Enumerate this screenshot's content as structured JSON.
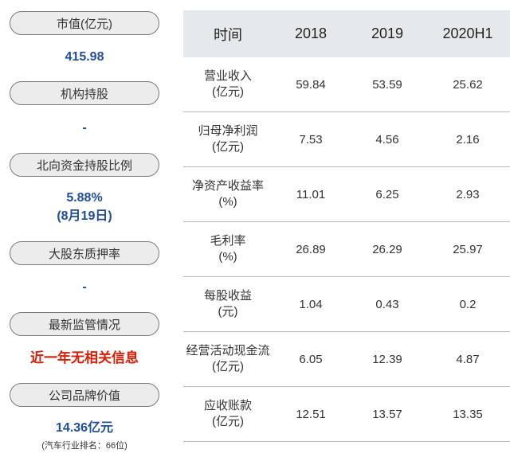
{
  "left_panel": {
    "items": [
      {
        "label": "市值(亿元)",
        "value": "415.98"
      },
      {
        "label": "机构持股",
        "value": "-"
      },
      {
        "label": "北向资金持股比例",
        "value": "5.88%",
        "value2": "(8月19日)"
      },
      {
        "label": "大股东质押率",
        "value": "-"
      },
      {
        "label": "最新监管情况",
        "value": "近一年无相关信息"
      },
      {
        "label": "公司品牌价值",
        "value": "14.36亿元",
        "note": "(汽车行业排名：66位)"
      }
    ],
    "colors": {
      "value": "#1f4e9c",
      "alert": "#d81e06",
      "pill_bg": "#ececec",
      "pill_border": "#7a7a7a"
    }
  },
  "table": {
    "header": [
      "时间",
      "2018",
      "2019",
      "2020H1"
    ],
    "rows": [
      {
        "label": [
          "营业收入",
          "(亿元)"
        ],
        "values": [
          "59.84",
          "53.59",
          "25.62"
        ]
      },
      {
        "label": [
          "归母净利润",
          "(亿元)"
        ],
        "values": [
          "7.53",
          "4.56",
          "2.16"
        ]
      },
      {
        "label": [
          "净资产收益率",
          "(%)"
        ],
        "values": [
          "11.01",
          "6.25",
          "2.93"
        ]
      },
      {
        "label": [
          "毛利率",
          "(%)"
        ],
        "values": [
          "26.89",
          "26.29",
          "25.97"
        ]
      },
      {
        "label": [
          "每股收益",
          "(元)"
        ],
        "values": [
          "1.04",
          "0.43",
          "0.2"
        ]
      },
      {
        "label": [
          "经营活动现金流",
          "(亿元)"
        ],
        "values": [
          "6.05",
          "12.39",
          "4.87"
        ]
      },
      {
        "label": [
          "应收账款",
          "(亿元)"
        ],
        "values": [
          "12.51",
          "13.57",
          "13.35"
        ]
      }
    ],
    "header_bg": "#e6e9ec"
  }
}
